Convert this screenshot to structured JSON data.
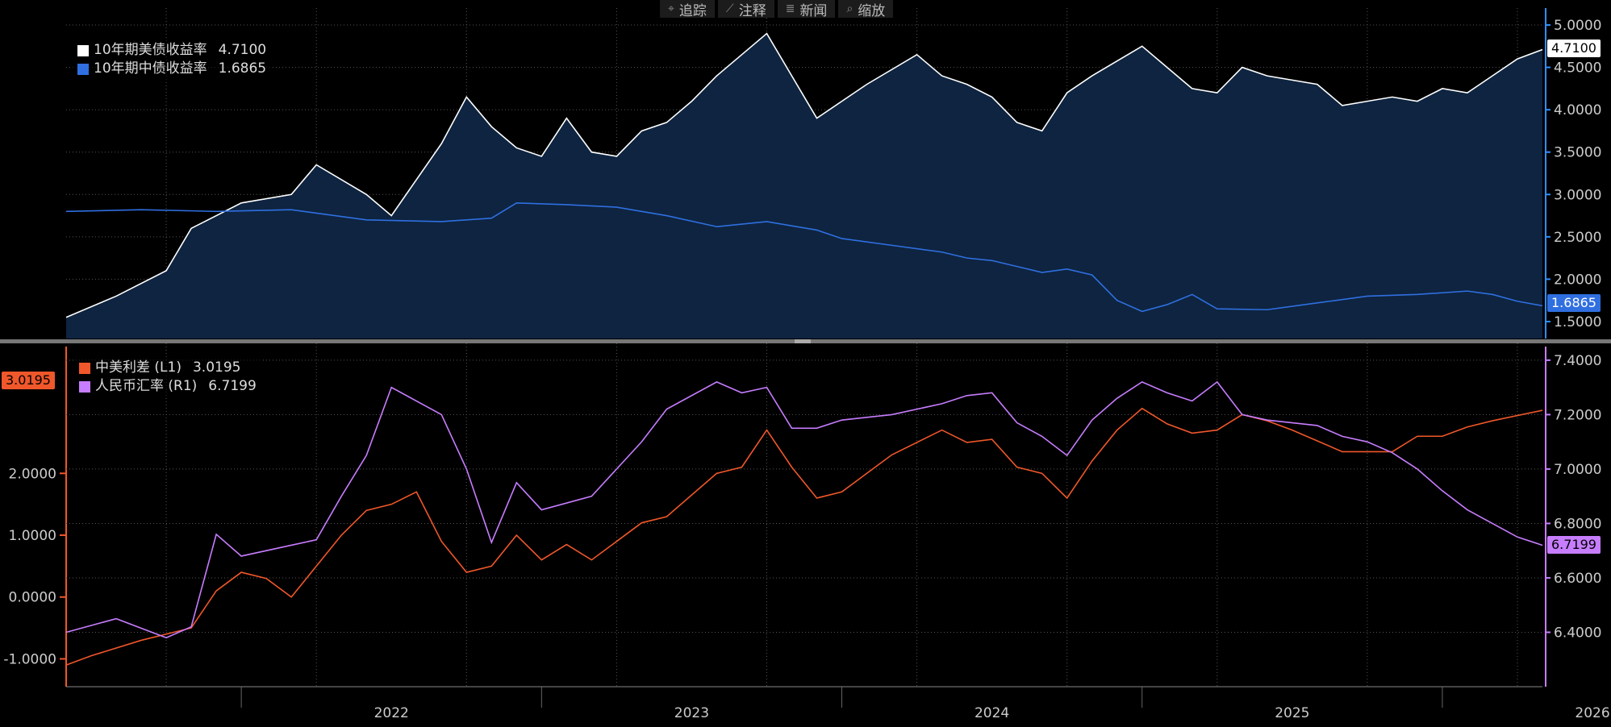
{
  "toolbar": {
    "items": [
      {
        "icon": "crosshair-icon",
        "glyph": "⌖",
        "label": "追踪"
      },
      {
        "icon": "pencil-icon",
        "glyph": "⟋",
        "label": "注释"
      },
      {
        "icon": "news-icon",
        "glyph": "≣",
        "label": "新闻"
      },
      {
        "icon": "search-icon",
        "glyph": "⌕",
        "label": "缩放"
      }
    ]
  },
  "colors": {
    "background": "#000000",
    "us10y": "#ffffff",
    "cn10y": "#2f6fe0",
    "area": "#0e2440",
    "spread": "#f0572a",
    "cnyusd": "#c77dff",
    "grid": "#555555",
    "axis_top": "#2f8fff",
    "divider": "#777777"
  },
  "top_legend": [
    {
      "name": "10年期美债收益率",
      "value": "4.7100",
      "color": "#ffffff"
    },
    {
      "name": "10年期中债收益率",
      "value": "1.6865",
      "color": "#2f6fe0"
    }
  ],
  "bottom_legend": [
    {
      "name": "中美利差 (L1)",
      "value": "3.0195",
      "color": "#f0572a"
    },
    {
      "name": "人民币汇率 (R1)",
      "value": "6.7199",
      "color": "#c77dff"
    }
  ],
  "value_tags": {
    "us10y": "4.7100",
    "cn10y": "1.6865",
    "spread": "3.0195",
    "cnyusd": "6.7199"
  },
  "chart_data": [
    {
      "type": "area",
      "ylim": [
        1.3,
        5.2
      ],
      "y_ticks": [
        "1.5000",
        "2.0000",
        "2.5000",
        "3.0000",
        "3.5000",
        "4.0000",
        "4.5000",
        "5.0000"
      ],
      "x_start": "2021-06",
      "x_end": "2026-05",
      "series": [
        {
          "name": "10年期美债收益率",
          "style": "area",
          "points": [
            [
              "2021-06",
              1.55
            ],
            [
              "2021-08",
              1.8
            ],
            [
              "2021-10",
              2.1
            ],
            [
              "2021-11",
              2.6
            ],
            [
              "2022-01",
              2.9
            ],
            [
              "2022-03",
              3.0
            ],
            [
              "2022-04",
              3.35
            ],
            [
              "2022-06",
              3.0
            ],
            [
              "2022-07",
              2.75
            ],
            [
              "2022-09",
              3.6
            ],
            [
              "2022-10",
              4.15
            ],
            [
              "2022-11",
              3.8
            ],
            [
              "2022-12",
              3.55
            ],
            [
              "2023-01",
              3.45
            ],
            [
              "2023-02",
              3.9
            ],
            [
              "2023-03",
              3.5
            ],
            [
              "2023-04",
              3.45
            ],
            [
              "2023-05",
              3.75
            ],
            [
              "2023-06",
              3.85
            ],
            [
              "2023-07",
              4.1
            ],
            [
              "2023-08",
              4.4
            ],
            [
              "2023-10",
              4.9
            ],
            [
              "2023-11",
              4.4
            ],
            [
              "2023-12",
              3.9
            ],
            [
              "2024-01",
              4.1
            ],
            [
              "2024-02",
              4.3
            ],
            [
              "2024-04",
              4.65
            ],
            [
              "2024-05",
              4.4
            ],
            [
              "2024-06",
              4.3
            ],
            [
              "2024-07",
              4.15
            ],
            [
              "2024-08",
              3.85
            ],
            [
              "2024-09",
              3.75
            ],
            [
              "2024-10",
              4.2
            ],
            [
              "2024-11",
              4.4
            ],
            [
              "2025-01",
              4.75
            ],
            [
              "2025-02",
              4.5
            ],
            [
              "2025-03",
              4.25
            ],
            [
              "2025-04",
              4.2
            ],
            [
              "2025-05",
              4.5
            ],
            [
              "2025-06",
              4.4
            ],
            [
              "2025-08",
              4.3
            ],
            [
              "2025-09",
              4.05
            ],
            [
              "2025-10",
              4.1
            ],
            [
              "2025-11",
              4.15
            ],
            [
              "2025-12",
              4.1
            ],
            [
              "2026-01",
              4.25
            ],
            [
              "2026-02",
              4.2
            ],
            [
              "2026-03",
              4.4
            ],
            [
              "2026-04",
              4.6
            ],
            [
              "2026-05",
              4.71
            ]
          ]
        },
        {
          "name": "10年期中债收益率",
          "style": "line",
          "points": [
            [
              "2021-06",
              2.8
            ],
            [
              "2021-09",
              2.82
            ],
            [
              "2021-12",
              2.8
            ],
            [
              "2022-03",
              2.82
            ],
            [
              "2022-04",
              2.78
            ],
            [
              "2022-06",
              2.7
            ],
            [
              "2022-09",
              2.68
            ],
            [
              "2022-11",
              2.72
            ],
            [
              "2022-12",
              2.9
            ],
            [
              "2023-02",
              2.88
            ],
            [
              "2023-04",
              2.85
            ],
            [
              "2023-06",
              2.75
            ],
            [
              "2023-08",
              2.62
            ],
            [
              "2023-10",
              2.68
            ],
            [
              "2023-12",
              2.58
            ],
            [
              "2024-01",
              2.48
            ],
            [
              "2024-03",
              2.4
            ],
            [
              "2024-05",
              2.32
            ],
            [
              "2024-06",
              2.25
            ],
            [
              "2024-07",
              2.22
            ],
            [
              "2024-08",
              2.15
            ],
            [
              "2024-09",
              2.08
            ],
            [
              "2024-10",
              2.12
            ],
            [
              "2024-11",
              2.05
            ],
            [
              "2024-12",
              1.75
            ],
            [
              "2025-01",
              1.62
            ],
            [
              "2025-02",
              1.7
            ],
            [
              "2025-03",
              1.82
            ],
            [
              "2025-04",
              1.65
            ],
            [
              "2025-06",
              1.64
            ],
            [
              "2025-08",
              1.72
            ],
            [
              "2025-10",
              1.8
            ],
            [
              "2025-12",
              1.82
            ],
            [
              "2026-02",
              1.86
            ],
            [
              "2026-03",
              1.82
            ],
            [
              "2026-04",
              1.74
            ],
            [
              "2026-05",
              1.6865
            ]
          ]
        }
      ]
    },
    {
      "type": "line",
      "ylim_left": [
        -1.45,
        4.05
      ],
      "ylim_right": [
        6.2,
        7.45
      ],
      "y_ticks_left": [
        "-1.0000",
        "0.0000",
        "1.0000",
        "2.0000"
      ],
      "y_ticks_right": [
        "6.4000",
        "6.6000",
        "6.8000",
        "7.0000",
        "7.2000",
        "7.4000"
      ],
      "x_start": "2021-06",
      "x_end": "2026-05",
      "x_labels": [
        "2022",
        "2023",
        "2024",
        "2025",
        "2026"
      ],
      "series": [
        {
          "name": "中美利差 (L1)",
          "axis": "left",
          "points": [
            [
              "2021-06",
              -1.1
            ],
            [
              "2021-07",
              -0.95
            ],
            [
              "2021-09",
              -0.7
            ],
            [
              "2021-11",
              -0.5
            ],
            [
              "2021-12",
              0.1
            ],
            [
              "2022-01",
              0.4
            ],
            [
              "2022-02",
              0.3
            ],
            [
              "2022-03",
              0.0
            ],
            [
              "2022-04",
              0.5
            ],
            [
              "2022-05",
              1.0
            ],
            [
              "2022-06",
              1.4
            ],
            [
              "2022-07",
              1.5
            ],
            [
              "2022-08",
              1.7
            ],
            [
              "2022-09",
              0.9
            ],
            [
              "2022-10",
              0.4
            ],
            [
              "2022-11",
              0.5
            ],
            [
              "2022-12",
              1.0
            ],
            [
              "2023-01",
              0.6
            ],
            [
              "2023-02",
              0.85
            ],
            [
              "2023-03",
              0.6
            ],
            [
              "2023-04",
              0.9
            ],
            [
              "2023-05",
              1.2
            ],
            [
              "2023-06",
              1.3
            ],
            [
              "2023-08",
              2.0
            ],
            [
              "2023-09",
              2.1
            ],
            [
              "2023-10",
              2.7
            ],
            [
              "2023-11",
              2.1
            ],
            [
              "2023-12",
              1.6
            ],
            [
              "2024-01",
              1.7
            ],
            [
              "2024-02",
              2.0
            ],
            [
              "2024-03",
              2.3
            ],
            [
              "2024-05",
              2.7
            ],
            [
              "2024-06",
              2.5
            ],
            [
              "2024-07",
              2.55
            ],
            [
              "2024-08",
              2.1
            ],
            [
              "2024-09",
              2.0
            ],
            [
              "2024-10",
              1.6
            ],
            [
              "2024-11",
              2.2
            ],
            [
              "2024-12",
              2.7
            ],
            [
              "2025-01",
              3.05
            ],
            [
              "2025-02",
              2.8
            ],
            [
              "2025-03",
              2.65
            ],
            [
              "2025-04",
              2.7
            ],
            [
              "2025-05",
              2.95
            ],
            [
              "2025-06",
              2.85
            ],
            [
              "2025-07",
              2.7
            ],
            [
              "2025-09",
              2.35
            ],
            [
              "2025-11",
              2.35
            ],
            [
              "2025-12",
              2.6
            ],
            [
              "2026-01",
              2.6
            ],
            [
              "2026-02",
              2.75
            ],
            [
              "2026-03",
              2.85
            ],
            [
              "2026-05",
              3.0195
            ]
          ]
        },
        {
          "name": "人民币汇率 (R1)",
          "axis": "right",
          "points": [
            [
              "2021-06",
              6.4
            ],
            [
              "2021-08",
              6.45
            ],
            [
              "2021-10",
              6.38
            ],
            [
              "2021-11",
              6.42
            ],
            [
              "2021-12",
              6.76
            ],
            [
              "2022-01",
              6.68
            ],
            [
              "2022-03",
              6.72
            ],
            [
              "2022-04",
              6.74
            ],
            [
              "2022-05",
              6.9
            ],
            [
              "2022-06",
              7.05
            ],
            [
              "2022-07",
              7.3
            ],
            [
              "2022-08",
              7.25
            ],
            [
              "2022-09",
              7.2
            ],
            [
              "2022-10",
              7.0
            ],
            [
              "2022-11",
              6.73
            ],
            [
              "2022-12",
              6.95
            ],
            [
              "2023-01",
              6.85
            ],
            [
              "2023-03",
              6.9
            ],
            [
              "2023-05",
              7.1
            ],
            [
              "2023-06",
              7.22
            ],
            [
              "2023-08",
              7.32
            ],
            [
              "2023-09",
              7.28
            ],
            [
              "2023-10",
              7.3
            ],
            [
              "2023-11",
              7.15
            ],
            [
              "2023-12",
              7.15
            ],
            [
              "2024-01",
              7.18
            ],
            [
              "2024-03",
              7.2
            ],
            [
              "2024-05",
              7.24
            ],
            [
              "2024-06",
              7.27
            ],
            [
              "2024-07",
              7.28
            ],
            [
              "2024-08",
              7.17
            ],
            [
              "2024-09",
              7.12
            ],
            [
              "2024-10",
              7.05
            ],
            [
              "2024-11",
              7.18
            ],
            [
              "2024-12",
              7.26
            ],
            [
              "2025-01",
              7.32
            ],
            [
              "2025-02",
              7.28
            ],
            [
              "2025-03",
              7.25
            ],
            [
              "2025-04",
              7.32
            ],
            [
              "2025-05",
              7.2
            ],
            [
              "2025-06",
              7.18
            ],
            [
              "2025-08",
              7.16
            ],
            [
              "2025-09",
              7.12
            ],
            [
              "2025-10",
              7.1
            ],
            [
              "2025-11",
              7.06
            ],
            [
              "2025-12",
              7.0
            ],
            [
              "2026-01",
              6.92
            ],
            [
              "2026-02",
              6.85
            ],
            [
              "2026-03",
              6.8
            ],
            [
              "2026-04",
              6.75
            ],
            [
              "2026-05",
              6.7199
            ]
          ]
        }
      ]
    }
  ]
}
